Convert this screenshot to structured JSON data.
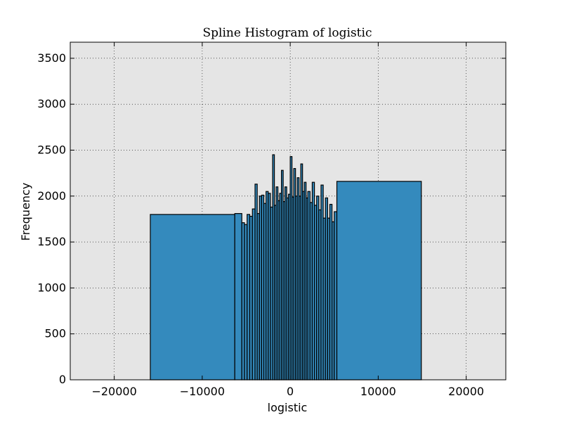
{
  "chart_data": {
    "type": "bar",
    "title": "Spline Histogram of logistic",
    "xlabel": "logistic",
    "ylabel": "Frequency",
    "xlim": [
      -25000,
      24500
    ],
    "ylim": [
      0,
      3675
    ],
    "xticks": [
      -20000,
      -10000,
      0,
      10000,
      20000
    ],
    "xtick_labels": [
      "−20000",
      "−10000",
      "0",
      "10000",
      "20000"
    ],
    "yticks": [
      0,
      500,
      1000,
      1500,
      2000,
      2500,
      3000,
      3500
    ],
    "ytick_labels": [
      "0",
      "500",
      "1000",
      "1500",
      "2000",
      "2500",
      "3000",
      "3500"
    ],
    "grid": true,
    "background_color": "#e5e5e5",
    "bar_color": "#348abd",
    "edge_color": "#000000",
    "bins": [
      {
        "x0": -15900,
        "x1": -6300,
        "value": 1800
      },
      {
        "x0": -6300,
        "x1": -5500,
        "value": 1810
      },
      {
        "x0": -5500,
        "x1": -5200,
        "value": 1710
      },
      {
        "x0": -5200,
        "x1": -4900,
        "value": 1690
      },
      {
        "x0": -4900,
        "x1": -4600,
        "value": 1800
      },
      {
        "x0": -4600,
        "x1": -4300,
        "value": 1780
      },
      {
        "x0": -4300,
        "x1": -4000,
        "value": 1860
      },
      {
        "x0": -4000,
        "x1": -3750,
        "value": 2130
      },
      {
        "x0": -3750,
        "x1": -3500,
        "value": 1810
      },
      {
        "x0": -3500,
        "x1": -3250,
        "value": 2000
      },
      {
        "x0": -3250,
        "x1": -3000,
        "value": 2010
      },
      {
        "x0": -3000,
        "x1": -2750,
        "value": 1920
      },
      {
        "x0": -2750,
        "x1": -2500,
        "value": 2050
      },
      {
        "x0": -2500,
        "x1": -2250,
        "value": 2030
      },
      {
        "x0": -2250,
        "x1": -2000,
        "value": 1880
      },
      {
        "x0": -2000,
        "x1": -1800,
        "value": 2450
      },
      {
        "x0": -1800,
        "x1": -1600,
        "value": 1900
      },
      {
        "x0": -1600,
        "x1": -1400,
        "value": 2100
      },
      {
        "x0": -1400,
        "x1": -1200,
        "value": 1950
      },
      {
        "x0": -1200,
        "x1": -1000,
        "value": 2030
      },
      {
        "x0": -1000,
        "x1": -800,
        "value": 2280
      },
      {
        "x0": -800,
        "x1": -600,
        "value": 1940
      },
      {
        "x0": -600,
        "x1": -400,
        "value": 2100
      },
      {
        "x0": -400,
        "x1": -200,
        "value": 1980
      },
      {
        "x0": -200,
        "x1": 0,
        "value": 2020
      },
      {
        "x0": 0,
        "x1": 200,
        "value": 2430
      },
      {
        "x0": 200,
        "x1": 400,
        "value": 1990
      },
      {
        "x0": 400,
        "x1": 600,
        "value": 2300
      },
      {
        "x0": 600,
        "x1": 800,
        "value": 2000
      },
      {
        "x0": 800,
        "x1": 1000,
        "value": 2200
      },
      {
        "x0": 1000,
        "x1": 1200,
        "value": 2000
      },
      {
        "x0": 1200,
        "x1": 1400,
        "value": 2350
      },
      {
        "x0": 1400,
        "x1": 1600,
        "value": 2050
      },
      {
        "x0": 1600,
        "x1": 1800,
        "value": 2150
      },
      {
        "x0": 1800,
        "x1": 2000,
        "value": 1980
      },
      {
        "x0": 2000,
        "x1": 2250,
        "value": 2050
      },
      {
        "x0": 2250,
        "x1": 2500,
        "value": 1930
      },
      {
        "x0": 2500,
        "x1": 2750,
        "value": 2150
      },
      {
        "x0": 2750,
        "x1": 3000,
        "value": 1900
      },
      {
        "x0": 3000,
        "x1": 3250,
        "value": 2000
      },
      {
        "x0": 3250,
        "x1": 3500,
        "value": 1850
      },
      {
        "x0": 3500,
        "x1": 3750,
        "value": 2120
      },
      {
        "x0": 3750,
        "x1": 4000,
        "value": 1760
      },
      {
        "x0": 4000,
        "x1": 4250,
        "value": 1980
      },
      {
        "x0": 4250,
        "x1": 4500,
        "value": 1760
      },
      {
        "x0": 4500,
        "x1": 4750,
        "value": 1910
      },
      {
        "x0": 4750,
        "x1": 5000,
        "value": 1720
      },
      {
        "x0": 5000,
        "x1": 5300,
        "value": 1830
      },
      {
        "x0": 5300,
        "x1": 14900,
        "value": 2160
      }
    ]
  }
}
